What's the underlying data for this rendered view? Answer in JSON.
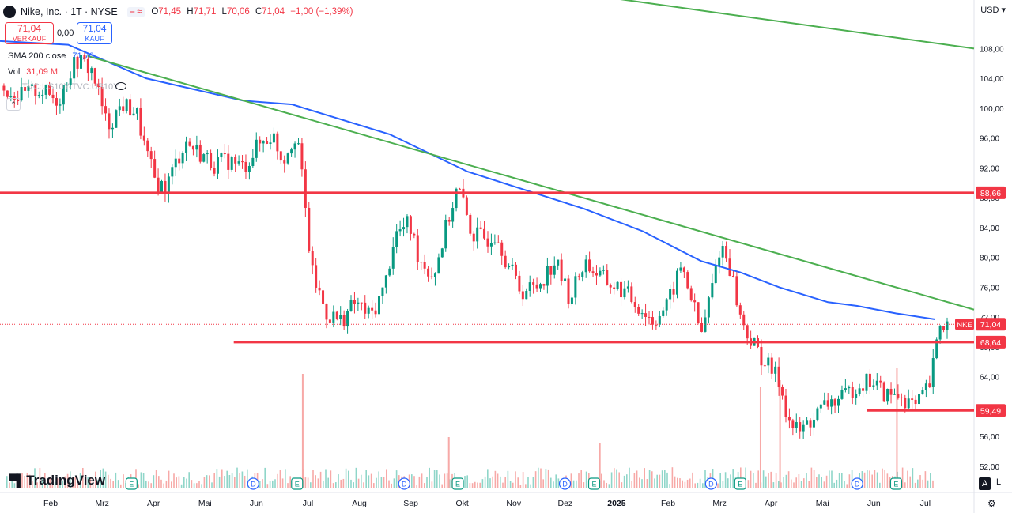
{
  "header": {
    "symbol_title": "Nike, Inc. · 1T · NYSE",
    "open_label": "O",
    "open": "71,45",
    "high_label": "H",
    "high": "71,71",
    "low_label": "L",
    "low": "70,06",
    "close_label": "C",
    "close": "71,04",
    "change": "−1,00 (−1,39%)",
    "currency": "USD"
  },
  "trade": {
    "sell_price": "71,04",
    "sell_label": "VERKAUF",
    "spread": "0,00",
    "buy_price": "71,04",
    "buy_label": "KAUF"
  },
  "indicators": {
    "sma_label": "SMA 200 close",
    "sma_value": "71,70",
    "vol_label": "Vol",
    "vol_value": "31,09 M",
    "hidden_label": "TVC:US10Y-TVC:US10Y"
  },
  "footer": {
    "brand": "TradingView",
    "auto": "A",
    "log": "L"
  },
  "colors": {
    "up": "#089981",
    "down": "#f23645",
    "sma": "#2962ff",
    "trendline": "#4caf50",
    "hline": "#f23645",
    "vol_up": "#8fd6c9",
    "vol_down": "#f7a9a7",
    "events": "#2962ff",
    "earnings": "#089981"
  },
  "chart_data": {
    "type": "candlestick",
    "symbol": "NKE",
    "last_price": "71,04",
    "price_scale_ticks": [
      "52,00",
      "56,00",
      "60,00",
      "64,00",
      "68,00",
      "72,00",
      "76,00",
      "80,00",
      "84,00",
      "88,00",
      "92,00",
      "96,00",
      "100,00",
      "104,00",
      "108,00"
    ],
    "price_range": [
      48.5,
      114.5
    ],
    "time_labels": [
      "Feb",
      "Mrz",
      "Apr",
      "Mai",
      "Jun",
      "Jul",
      "Aug",
      "Sep",
      "Okt",
      "Nov",
      "Dez",
      "2025",
      "Feb",
      "Mrz",
      "Apr",
      "Mai",
      "Jun",
      "Jul"
    ],
    "horizontal_levels": [
      {
        "price": 88.66,
        "label": "88,66",
        "from_frac": 0.0
      },
      {
        "price": 68.64,
        "label": "68,64",
        "from_frac": 0.24
      },
      {
        "price": 59.49,
        "label": "59,49",
        "from_frac": 0.89
      }
    ],
    "trendlines": [
      {
        "from": [
          0.09,
          107.0
        ],
        "to": [
          1.0,
          73.0
        ]
      },
      {
        "from": [
          0.56,
          116.0
        ],
        "to": [
          1.0,
          108.0
        ]
      }
    ],
    "price_path": [
      [
        0.0,
        103.0
      ],
      [
        0.02,
        101.5
      ],
      [
        0.04,
        102.5
      ],
      [
        0.06,
        101.0
      ],
      [
        0.07,
        104.5
      ],
      [
        0.08,
        106.5
      ],
      [
        0.095,
        105.0
      ],
      [
        0.11,
        97.5
      ],
      [
        0.125,
        100.5
      ],
      [
        0.14,
        99.5
      ],
      [
        0.15,
        94.0
      ],
      [
        0.16,
        90.0
      ],
      [
        0.17,
        89.3
      ],
      [
        0.18,
        92.5
      ],
      [
        0.19,
        95.5
      ],
      [
        0.21,
        93.5
      ],
      [
        0.22,
        92.5
      ],
      [
        0.235,
        93.0
      ],
      [
        0.25,
        92.0
      ],
      [
        0.265,
        95.0
      ],
      [
        0.28,
        96.5
      ],
      [
        0.29,
        93.0
      ],
      [
        0.305,
        97.0
      ],
      [
        0.32,
        78.0
      ],
      [
        0.335,
        72.5
      ],
      [
        0.35,
        71.5
      ],
      [
        0.365,
        74.0
      ],
      [
        0.38,
        72.0
      ],
      [
        0.395,
        76.0
      ],
      [
        0.405,
        83.0
      ],
      [
        0.42,
        84.5
      ],
      [
        0.43,
        80.0
      ],
      [
        0.445,
        77.5
      ],
      [
        0.46,
        85.0
      ],
      [
        0.47,
        89.5
      ],
      [
        0.485,
        83.0
      ],
      [
        0.5,
        82.5
      ],
      [
        0.51,
        83.5
      ],
      [
        0.52,
        79.5
      ],
      [
        0.535,
        75.5
      ],
      [
        0.55,
        76.0
      ],
      [
        0.57,
        79.5
      ],
      [
        0.585,
        74.5
      ],
      [
        0.6,
        79.5
      ],
      [
        0.615,
        77.5
      ],
      [
        0.625,
        76.5
      ],
      [
        0.64,
        75.5
      ],
      [
        0.655,
        73.5
      ],
      [
        0.67,
        71.5
      ],
      [
        0.685,
        73.5
      ],
      [
        0.7,
        79.0
      ],
      [
        0.71,
        74.5
      ],
      [
        0.72,
        69.5
      ],
      [
        0.73,
        75.5
      ],
      [
        0.74,
        82.0
      ],
      [
        0.75,
        78.5
      ],
      [
        0.76,
        72.0
      ],
      [
        0.77,
        69.0
      ],
      [
        0.785,
        66.0
      ],
      [
        0.8,
        63.5
      ],
      [
        0.81,
        58.0
      ],
      [
        0.82,
        56.5
      ],
      [
        0.835,
        58.5
      ],
      [
        0.85,
        60.5
      ],
      [
        0.865,
        61.0
      ],
      [
        0.88,
        63.0
      ],
      [
        0.895,
        63.5
      ],
      [
        0.91,
        61.5
      ],
      [
        0.925,
        61.5
      ],
      [
        0.94,
        59.8
      ],
      [
        0.955,
        63.0
      ],
      [
        0.965,
        71.0
      ],
      [
        0.975,
        71.04
      ]
    ],
    "sma_path": [
      [
        0.0,
        109.0
      ],
      [
        0.07,
        108.5
      ],
      [
        0.15,
        104.0
      ],
      [
        0.2,
        102.5
      ],
      [
        0.25,
        101.0
      ],
      [
        0.3,
        100.5
      ],
      [
        0.4,
        96.5
      ],
      [
        0.48,
        91.5
      ],
      [
        0.54,
        89.0
      ],
      [
        0.6,
        86.5
      ],
      [
        0.66,
        83.5
      ],
      [
        0.72,
        79.5
      ],
      [
        0.76,
        78.0
      ],
      [
        0.8,
        76.0
      ],
      [
        0.85,
        74.0
      ],
      [
        0.88,
        73.5
      ],
      [
        0.92,
        72.5
      ],
      [
        0.96,
        71.7
      ]
    ],
    "volume_spikes": [
      [
        0.31,
        0.9
      ],
      [
        0.46,
        0.4
      ],
      [
        0.615,
        0.35
      ],
      [
        0.78,
        0.8
      ],
      [
        0.8,
        0.85
      ],
      [
        0.92,
        0.95
      ]
    ],
    "event_markers": [
      {
        "type": "E",
        "x": 0.135
      },
      {
        "type": "D",
        "x": 0.26
      },
      {
        "type": "E",
        "x": 0.305
      },
      {
        "type": "D",
        "x": 0.415
      },
      {
        "type": "E",
        "x": 0.47
      },
      {
        "type": "D",
        "x": 0.58
      },
      {
        "type": "E",
        "x": 0.61
      },
      {
        "type": "D",
        "x": 0.73
      },
      {
        "type": "E",
        "x": 0.76
      },
      {
        "type": "D",
        "x": 0.88
      },
      {
        "type": "E",
        "x": 0.92
      }
    ]
  }
}
